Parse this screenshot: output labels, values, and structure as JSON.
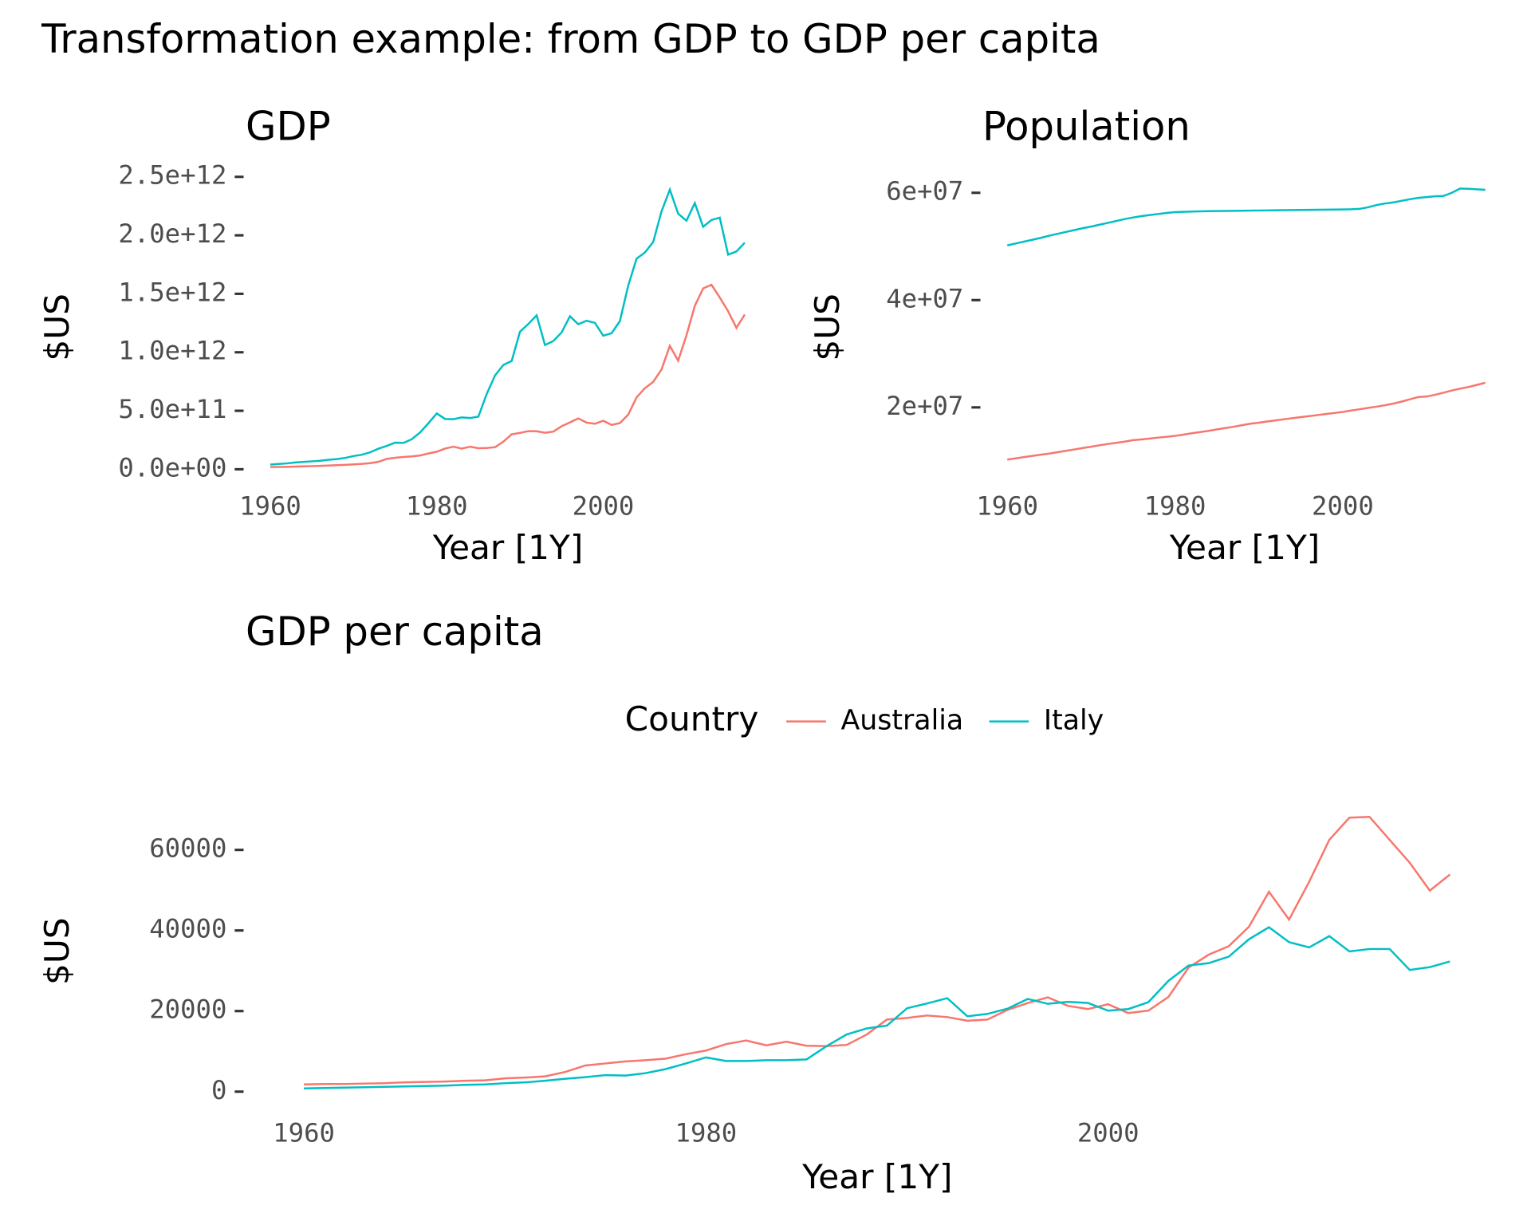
{
  "title": "Transformation example: from GDP to GDP per capita",
  "chart_data": [
    {
      "type": "line",
      "title": "GDP",
      "x_label": "Year [1Y]",
      "y_label": "$US",
      "x": [
        1960,
        1961,
        1962,
        1963,
        1964,
        1965,
        1966,
        1967,
        1968,
        1969,
        1970,
        1971,
        1972,
        1973,
        1974,
        1975,
        1976,
        1977,
        1978,
        1979,
        1980,
        1981,
        1982,
        1983,
        1984,
        1985,
        1986,
        1987,
        1988,
        1989,
        1990,
        1991,
        1992,
        1993,
        1994,
        1995,
        1996,
        1997,
        1998,
        1999,
        2000,
        2001,
        2002,
        2003,
        2004,
        2005,
        2006,
        2007,
        2008,
        2009,
        2010,
        2011,
        2012,
        2013,
        2014,
        2015,
        2016,
        2017
      ],
      "xlim": [
        1957.15,
        2019.85
      ],
      "xticks": [
        1960,
        1980,
        2000
      ],
      "ylim": [
        -56000000000.0,
        2569000000000.0
      ],
      "yticks": [
        {
          "value": 0,
          "label": "0.0e+00"
        },
        {
          "value": 500000000000.0,
          "label": "5.0e+11"
        },
        {
          "value": 1000000000000.0,
          "label": "1.0e+12"
        },
        {
          "value": 1500000000000.0,
          "label": "1.5e+12"
        },
        {
          "value": 2000000000000.0,
          "label": "2.0e+12"
        },
        {
          "value": 2500000000000.0,
          "label": "2.5e+12"
        }
      ],
      "series": [
        {
          "name": "Australia",
          "color": "#F8766D",
          "values": [
            19000000000.0,
            20000000000.0,
            21000000000.0,
            23000000000.0,
            25000000000.0,
            27000000000.0,
            29000000000.0,
            32000000000.0,
            35000000000.0,
            38000000000.0,
            42000000000.0,
            46000000000.0,
            52000000000.0,
            64000000000.0,
            89000000000.0,
            98000000000.0,
            105000000000.0,
            110000000000.0,
            118000000000.0,
            135000000000.0,
            150000000000.0,
            177000000000.0,
            193000000000.0,
            177000000000.0,
            193000000000.0,
            180000000000.0,
            182000000000.0,
            189000000000.0,
            236000000000.0,
            299000000000.0,
            311000000000.0,
            326000000000.0,
            325000000000.0,
            312000000000.0,
            322000000000.0,
            368000000000.0,
            401000000000.0,
            435000000000.0,
            399000000000.0,
            389000000000.0,
            415000000000.0,
            379000000000.0,
            395000000000.0,
            467000000000.0,
            614000000000.0,
            693000000000.0,
            747000000000.0,
            853000000000.0,
            1055000000000.0,
            928000000000.0,
            1146000000000.0,
            1397000000000.0,
            1546000000000.0,
            1577000000000.0,
            1468000000000.0,
            1351000000000.0,
            1209000000000.0,
            1323000000000.0
          ]
        },
        {
          "name": "Italy",
          "color": "#00BFC4",
          "values": [
            40000000000.0,
            45000000000.0,
            50000000000.0,
            58000000000.0,
            63000000000.0,
            68000000000.0,
            73000000000.0,
            81000000000.0,
            87000000000.0,
            97000000000.0,
            113000000000.0,
            124000000000.0,
            145000000000.0,
            176000000000.0,
            200000000000.0,
            228000000000.0,
            225000000000.0,
            257000000000.0,
            315000000000.0,
            394000000000.0,
            477000000000.0,
            430000000000.0,
            428000000000.0,
            443000000000.0,
            438000000000.0,
            450000000000.0,
            644000000000.0,
            802000000000.0,
            892000000000.0,
            926000000000.0,
            1177000000000.0,
            1242000000000.0,
            1316000000000.0,
            1062000000000.0,
            1096000000000.0,
            1170000000000.0,
            1308000000000.0,
            1240000000000.0,
            1270000000000.0,
            1252000000000.0,
            1142000000000.0,
            1163000000000.0,
            1267000000000.0,
            1570000000000.0,
            1800000000000.0,
            1853000000000.0,
            1943000000000.0,
            2204000000000.0,
            2391000000000.0,
            2185000000000.0,
            2125000000000.0,
            2276000000000.0,
            2073000000000.0,
            2131000000000.0,
            2151000000000.0,
            1835000000000.0,
            1862000000000.0,
            1937000000000.0
          ]
        }
      ]
    },
    {
      "type": "line",
      "title": "Population",
      "x_label": "Year [1Y]",
      "y_label": "$US",
      "x": [
        1960,
        1961,
        1962,
        1963,
        1964,
        1965,
        1966,
        1967,
        1968,
        1969,
        1970,
        1971,
        1972,
        1973,
        1974,
        1975,
        1976,
        1977,
        1978,
        1979,
        1980,
        1981,
        1982,
        1983,
        1984,
        1985,
        1986,
        1987,
        1988,
        1989,
        1990,
        1991,
        1992,
        1993,
        1994,
        1995,
        1996,
        1997,
        1998,
        1999,
        2000,
        2001,
        2002,
        2003,
        2004,
        2005,
        2006,
        2007,
        2008,
        2009,
        2010,
        2011,
        2012,
        2013,
        2014,
        2015,
        2016,
        2017
      ],
      "xlim": [
        1957.15,
        2019.85
      ],
      "xticks": [
        1960,
        1980,
        2000
      ],
      "ylim": [
        7800000.0,
        63000000.0
      ],
      "yticks": [
        {
          "value": 20000000.0,
          "label": "2e+07"
        },
        {
          "value": 40000000.0,
          "label": "4e+07"
        },
        {
          "value": 60000000.0,
          "label": "6e+07"
        }
      ],
      "series": [
        {
          "name": "Australia",
          "color": "#F8766D",
          "values": [
            10280000.0,
            10500000.0,
            10740000.0,
            10960000.0,
            11190000.0,
            11390000.0,
            11650000.0,
            11910000.0,
            12160000.0,
            12430000.0,
            12670000.0,
            12940000.0,
            13180000.0,
            13400000.0,
            13620000.0,
            13900000.0,
            14030000.0,
            14190000.0,
            14370000.0,
            14520000.0,
            14690000.0,
            14920000.0,
            15180000.0,
            15400000.0,
            15620000.0,
            15900000.0,
            16140000.0,
            16400000.0,
            16680000.0,
            16960000.0,
            17150000.0,
            17370000.0,
            17580000.0,
            17790000.0,
            17980000.0,
            18190000.0,
            18380000.0,
            18570000.0,
            18760000.0,
            18960000.0,
            19150000.0,
            19410000.0,
            19650000.0,
            19900000.0,
            20130000.0,
            20390000.0,
            20700000.0,
            21070000.0,
            21500000.0,
            21930000.0,
            22030000.0,
            22340000.0,
            22730000.0,
            23140000.0,
            23490000.0,
            23800000.0,
            24190000.0,
            24600000.0
          ]
        },
        {
          "name": "Italy",
          "color": "#00BFC4",
          "values": [
            50200000.0,
            50550000.0,
            50900000.0,
            51250000.0,
            51600000.0,
            52000000.0,
            52350000.0,
            52700000.0,
            53050000.0,
            53400000.0,
            53700000.0,
            54050000.0,
            54400000.0,
            54750000.0,
            55100000.0,
            55400000.0,
            55650000.0,
            55850000.0,
            56050000.0,
            56250000.0,
            56400000.0,
            56450000.0,
            56500000.0,
            56550000.0,
            56580000.0,
            56600000.0,
            56620000.0,
            56640000.0,
            56660000.0,
            56680000.0,
            56700000.0,
            56720000.0,
            56740000.0,
            56760000.0,
            56780000.0,
            56800000.0,
            56820000.0,
            56840000.0,
            56860000.0,
            56880000.0,
            56900000.0,
            56930000.0,
            57000000.0,
            57300000.0,
            57700000.0,
            58000000.0,
            58200000.0,
            58500000.0,
            58800000.0,
            59050000.0,
            59200000.0,
            59350000.0,
            59400000.0,
            60000000.0,
            60800000.0,
            60750000.0,
            60650000.0,
            60550000.0
          ]
        }
      ]
    },
    {
      "type": "line",
      "title": "GDP per capita",
      "x_label": "Year [1Y]",
      "y_label": "$US",
      "legend_title": "Country",
      "x": [
        1960,
        1961,
        1962,
        1963,
        1964,
        1965,
        1966,
        1967,
        1968,
        1969,
        1970,
        1971,
        1972,
        1973,
        1974,
        1975,
        1976,
        1977,
        1978,
        1979,
        1980,
        1981,
        1982,
        1983,
        1984,
        1985,
        1986,
        1987,
        1988,
        1989,
        1990,
        1991,
        1992,
        1993,
        1994,
        1995,
        1996,
        1997,
        1998,
        1999,
        2000,
        2001,
        2002,
        2003,
        2004,
        2005,
        2006,
        2007,
        2008,
        2009,
        2010,
        2011,
        2012,
        2013,
        2014,
        2015,
        2016,
        2017
      ],
      "xlim": [
        1957.15,
        2019.85
      ],
      "xticks": [
        1960,
        1980,
        2000
      ],
      "ylim": [
        -3500,
        70000
      ],
      "yticks": [
        0,
        20000,
        40000,
        60000
      ],
      "series": [
        {
          "name": "Australia",
          "color": "#F8766D",
          "values": [
            1800,
            1900,
            1900,
            2000,
            2100,
            2300,
            2400,
            2500,
            2700,
            2800,
            3300,
            3500,
            3800,
            4900,
            6500,
            7000,
            7500,
            7800,
            8200,
            9300,
            10200,
            11800,
            12700,
            11500,
            12400,
            11400,
            11300,
            11600,
            14200,
            17900,
            18300,
            18900,
            18500,
            17600,
            17900,
            20300,
            22000,
            23400,
            21300,
            20500,
            21700,
            19500,
            20100,
            23500,
            30800,
            34000,
            36100,
            40900,
            49600,
            42700,
            52100,
            62500,
            68000,
            68200,
            62500,
            56800,
            49900,
            53900
          ]
        },
        {
          "name": "Italy",
          "color": "#00BFC4",
          "values": [
            800,
            900,
            1000,
            1100,
            1200,
            1300,
            1400,
            1500,
            1700,
            1800,
            2100,
            2300,
            2700,
            3200,
            3600,
            4100,
            4000,
            4600,
            5600,
            7000,
            8500,
            7600,
            7600,
            7800,
            7800,
            8000,
            11300,
            14200,
            15700,
            16400,
            20700,
            21900,
            23200,
            18700,
            19300,
            20600,
            23000,
            21800,
            22300,
            22000,
            20100,
            20500,
            22200,
            27500,
            31300,
            31900,
            33500,
            37800,
            40800,
            37100,
            35800,
            38600,
            34800,
            35400,
            35400,
            30200,
            30900,
            32300
          ]
        }
      ]
    }
  ]
}
